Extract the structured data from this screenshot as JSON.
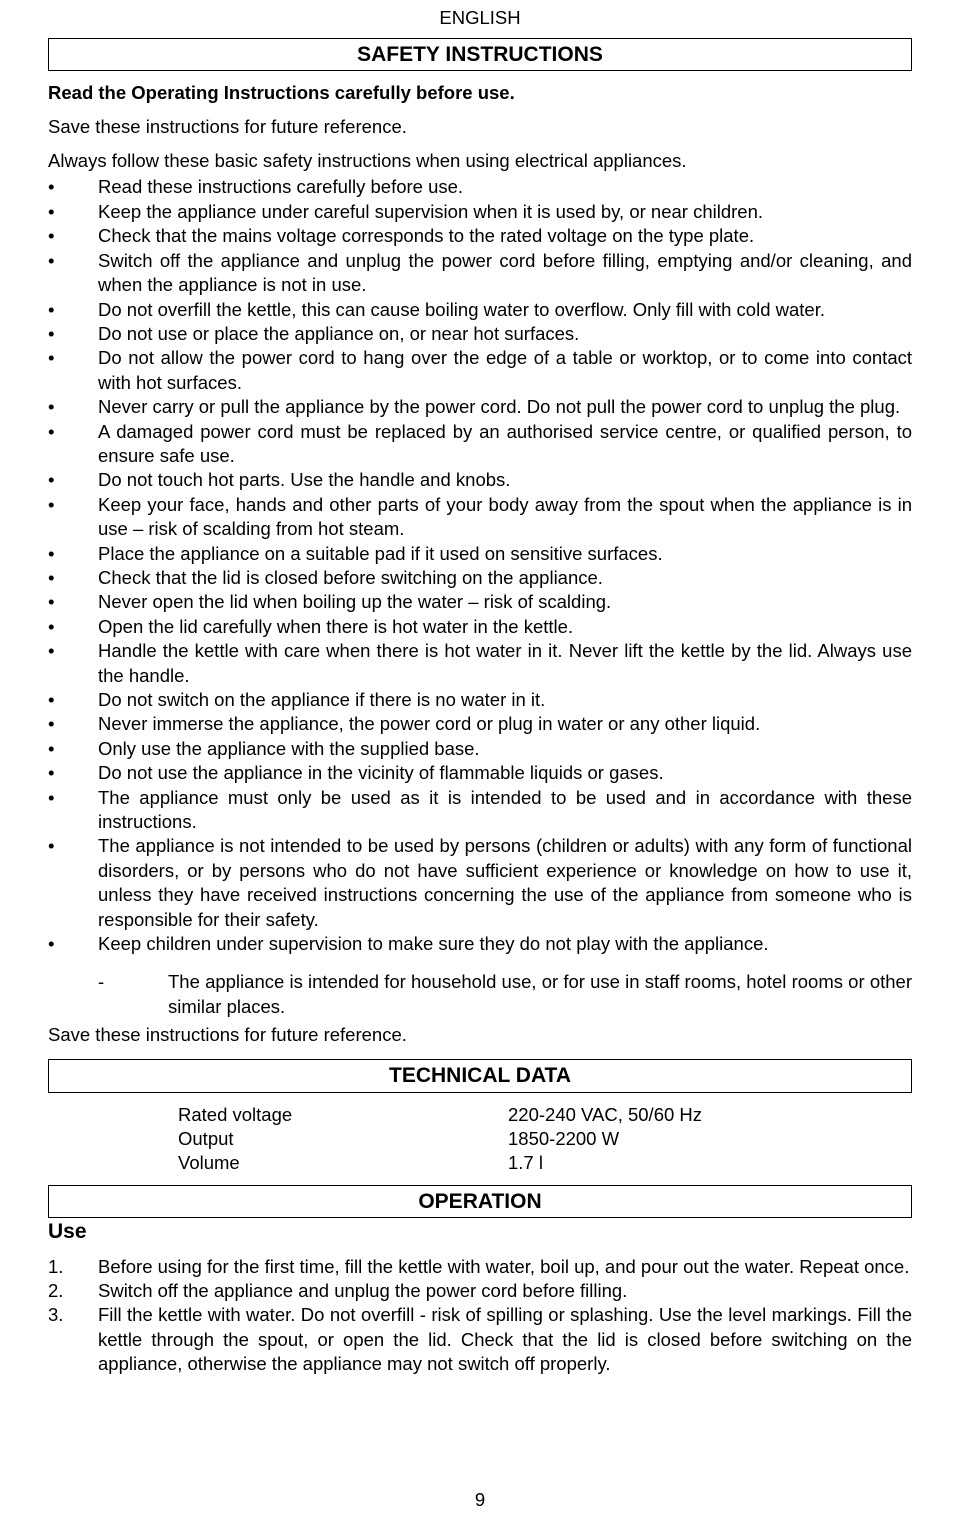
{
  "header": {
    "language": "ENGLISH"
  },
  "sections": {
    "safety_title": "SAFETY INSTRUCTIONS",
    "tech_title": "TECHNICAL DATA",
    "operation_title": "OPERATION"
  },
  "intro": {
    "read_before": "Read the Operating Instructions carefully before use.",
    "save_future": "Save these instructions for future reference.",
    "always_follow": "Always follow these basic safety instructions when using electrical appliances."
  },
  "safety_items": [
    "Read these instructions carefully before use.",
    "Keep the appliance under careful supervision when it is used by, or near children.",
    "Check that the mains voltage corresponds to the rated voltage on the type plate.",
    "Switch off the appliance and unplug the power cord before filling, emptying and/or cleaning, and when the appliance is not in use.",
    "Do not overfill the kettle, this can cause boiling water to overflow. Only fill with cold water.",
    "Do not use or place the appliance on, or near hot surfaces.",
    "Do not allow the power cord to hang over the edge of a table or worktop, or to come into contact with hot surfaces.",
    "Never carry or pull the appliance by the power cord. Do not pull the power cord to unplug the plug.",
    "A damaged power cord must be replaced by an authorised service centre, or qualified person, to ensure safe use.",
    "Do not touch hot parts. Use the handle and knobs.",
    "Keep your face, hands and other parts of your body away from the spout when the appliance is in use – risk of scalding from hot steam.",
    "Place the appliance on a suitable pad if it used on sensitive surfaces.",
    "Check that the lid is closed before switching on the appliance.",
    "Never open the lid when boiling up the water – risk of scalding.",
    "Open the lid carefully when there is hot water in the kettle.",
    "Handle the kettle with care when there is hot water in it. Never lift the kettle by the lid. Always use the handle.",
    "Do not switch on the appliance if there is no water in it.",
    "Never immerse the appliance, the power cord or plug in water or any other liquid.",
    "Only use the appliance with the supplied base.",
    "Do not use the appliance in the vicinity of flammable liquids or gases.",
    "The appliance must only be used as it is intended to be used and in accordance with these instructions.",
    "The appliance is not intended to be used by persons (children or adults) with any form of functional disorders, or by persons who do not have sufficient experience or knowledge on how to use it, unless they have received instructions concerning the use of the appliance from someone who is responsible for their safety.",
    "Keep children under supervision to make sure they do not play with the appliance."
  ],
  "dash_item": "The appliance is intended for household use, or for use in staff rooms, hotel rooms or other similar places.",
  "save_again": "Save these instructions for future reference.",
  "tech": {
    "rows": [
      {
        "label": "Rated voltage",
        "value": "220-240 VAC, 50/60 Hz"
      },
      {
        "label": "Output",
        "value": "1850-2200 W"
      },
      {
        "label": "Volume",
        "value": "1.7 l"
      }
    ]
  },
  "use_label": "Use",
  "operation_steps": [
    "Before using for the first time, fill the kettle with water, boil up, and pour out the water. Repeat once.",
    "Switch off the appliance and unplug the power cord before filling.",
    "Fill the kettle with water. Do not overfill - risk of spilling or splashing. Use the level markings. Fill the kettle through the spout, or open the lid. Check that the lid is closed before switching on the appliance, otherwise the appliance may not switch off properly."
  ],
  "page_number": "9",
  "colors": {
    "text": "#000000",
    "background": "#ffffff",
    "border": "#000000"
  },
  "typography": {
    "body_fontsize": 18.5,
    "heading_fontsize": 21,
    "font_family": "Arial"
  }
}
